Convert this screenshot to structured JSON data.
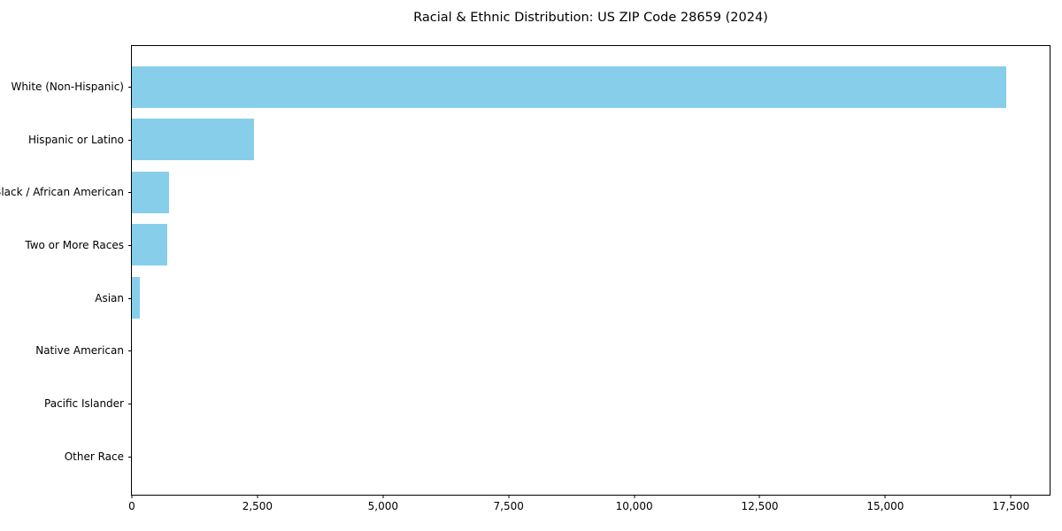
{
  "chart_data": {
    "type": "bar",
    "orientation": "horizontal",
    "title": "Racial & Ethnic Distribution: US ZIP Code 28659 (2024)",
    "categories": [
      "White (Non-Hispanic)",
      "Hispanic or Latino",
      "Black / African American",
      "Two or More Races",
      "Asian",
      "Native American",
      "Pacific Islander",
      "Other Race"
    ],
    "values": [
      17400,
      2430,
      740,
      700,
      160,
      0,
      0,
      0
    ],
    "xlabel": "",
    "ylabel": "",
    "xlim": [
      0,
      18270
    ],
    "x_ticks": [
      0,
      2500,
      5000,
      7500,
      10000,
      12500,
      15000,
      17500
    ],
    "x_tick_labels": [
      "0",
      "2,500",
      "5,000",
      "7,500",
      "10,000",
      "12,500",
      "15,000",
      "17,500"
    ],
    "bar_color": "#87CEEB",
    "axis_color": "#000000",
    "text_color": "#000000",
    "grid": false,
    "legend": null
  }
}
